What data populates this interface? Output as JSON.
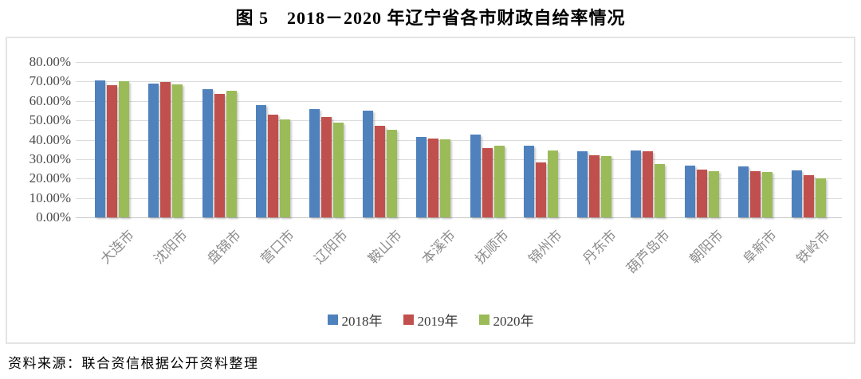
{
  "figure": {
    "title": "图 5　2018－2020 年辽宁省各市财政自给率情况",
    "source_note": "资料来源：联合资信根据公开资料整理"
  },
  "colors": {
    "series_2018": "#4F81BD",
    "series_2019": "#C0504D",
    "series_2020": "#9BBB59",
    "gridline": "#DBDBDB",
    "chart_border": "#E4E4E4",
    "y_tick_text": "#4A4A4A",
    "x_label_text": "#8C8C8C"
  },
  "chart_data": {
    "type": "bar",
    "title": "图 5　2018－2020 年辽宁省各市财政自给率情况",
    "categories": [
      "大连市",
      "沈阳市",
      "盘锦市",
      "营口市",
      "辽阳市",
      "鞍山市",
      "本溪市",
      "抚顺市",
      "锦州市",
      "丹东市",
      "葫芦岛市",
      "朝阳市",
      "阜新市",
      "铁岭市"
    ],
    "series": [
      {
        "name": "2018年",
        "color": "#4F81BD",
        "values": [
          70.4,
          68.9,
          66.2,
          57.8,
          56.0,
          54.8,
          41.4,
          42.6,
          37.0,
          33.9,
          34.3,
          26.8,
          26.4,
          24.3
        ]
      },
      {
        "name": "2019年",
        "color": "#C0504D",
        "values": [
          68.2,
          69.8,
          63.4,
          52.8,
          51.5,
          47.1,
          40.8,
          35.9,
          28.3,
          32.0,
          33.9,
          24.6,
          23.6,
          21.6
        ]
      },
      {
        "name": "2020年",
        "color": "#9BBB59",
        "values": [
          70.3,
          68.6,
          65.4,
          50.6,
          48.8,
          45.1,
          40.3,
          37.1,
          34.5,
          31.7,
          27.5,
          23.6,
          23.4,
          20.2
        ]
      }
    ],
    "xlabel": "",
    "ylabel": "",
    "y_axis": {
      "min": 0,
      "max": 80,
      "step": 10,
      "tick_labels": [
        "0.00%",
        "10.00%",
        "20.00%",
        "30.00%",
        "40.00%",
        "50.00%",
        "60.00%",
        "70.00%",
        "80.00%"
      ]
    },
    "grid": true,
    "legend_position": "bottom"
  }
}
